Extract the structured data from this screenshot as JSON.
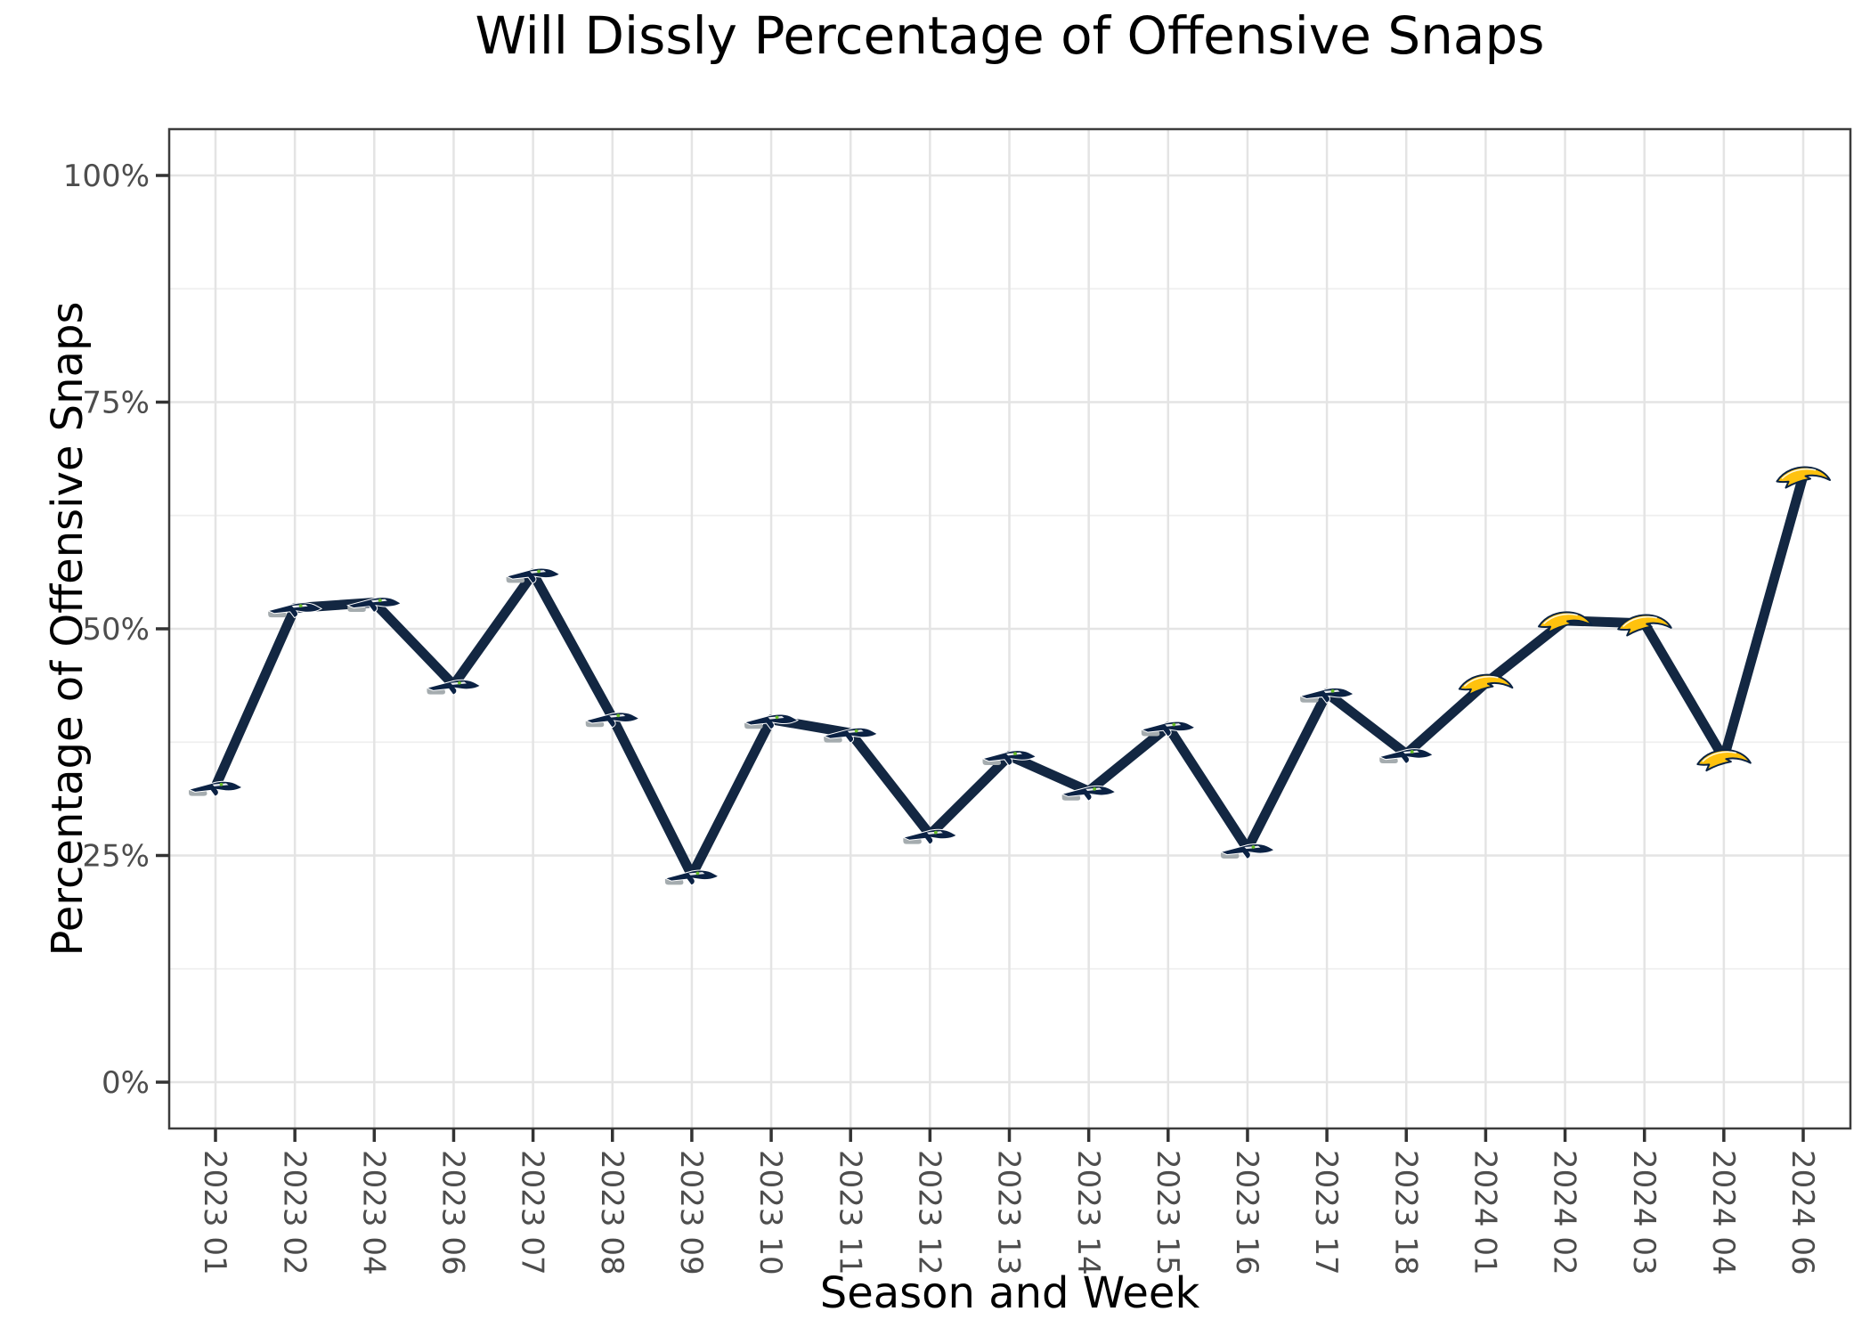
{
  "chart_data": {
    "type": "line",
    "title": "Will Dissly Percentage of Offensive Snaps",
    "xlabel": "Season and Week",
    "ylabel": "Percentage of Offensive Snaps",
    "ylim": [
      0,
      100
    ],
    "y_major_values": [
      0,
      25,
      50,
      75,
      100
    ],
    "y_tick_labels": [
      "0%",
      "25%",
      "50%",
      "75%",
      "100%"
    ],
    "y_minor_values": [
      12.5,
      37.5,
      62.5,
      87.5
    ],
    "x_tick_labels": [
      "2023 01",
      "2023 02",
      "2023 04",
      "2023 06",
      "2023 07",
      "2023 08",
      "2023 09",
      "2023 10",
      "2023 11",
      "2023 12",
      "2023 13",
      "2023 14",
      "2023 15",
      "2023 16",
      "2023 17",
      "2023 18",
      "2024 01",
      "2024 02",
      "2024 03",
      "2024 04",
      "2024 06"
    ],
    "x_tick_rotation_deg": 90,
    "grid": "horizontal major+minor, vertical major per category",
    "legend": "none",
    "marker_style": "team-logo",
    "series": [
      {
        "name": "Will Dissly offensive snap percentage",
        "values": [
          32.6,
          52.3,
          52.9,
          43.8,
          56.1,
          40.2,
          22.8,
          40.0,
          38.5,
          27.3,
          36.0,
          32.1,
          39.2,
          25.7,
          42.9,
          36.2,
          44.0,
          50.9,
          50.6,
          35.7,
          66.9
        ],
        "teams": [
          "SEA",
          "SEA",
          "SEA",
          "SEA",
          "SEA",
          "SEA",
          "SEA",
          "SEA",
          "SEA",
          "SEA",
          "SEA",
          "SEA",
          "SEA",
          "SEA",
          "SEA",
          "SEA",
          "LAC",
          "LAC",
          "LAC",
          "LAC",
          "LAC"
        ]
      }
    ],
    "colors": {
      "line": "#132742",
      "grid_major": "#e4e4e4",
      "grid_minor": "#efefef",
      "panel_border": "#3c3c3c",
      "tick_mark": "#333333",
      "tick_text": "#4d4d4d",
      "seahawks_navy": "#0b2244",
      "seahawks_silver": "#a5acaf",
      "seahawks_green": "#69be28",
      "chargers_gold": "#ffc20e",
      "chargers_navy": "#0a2342"
    }
  }
}
